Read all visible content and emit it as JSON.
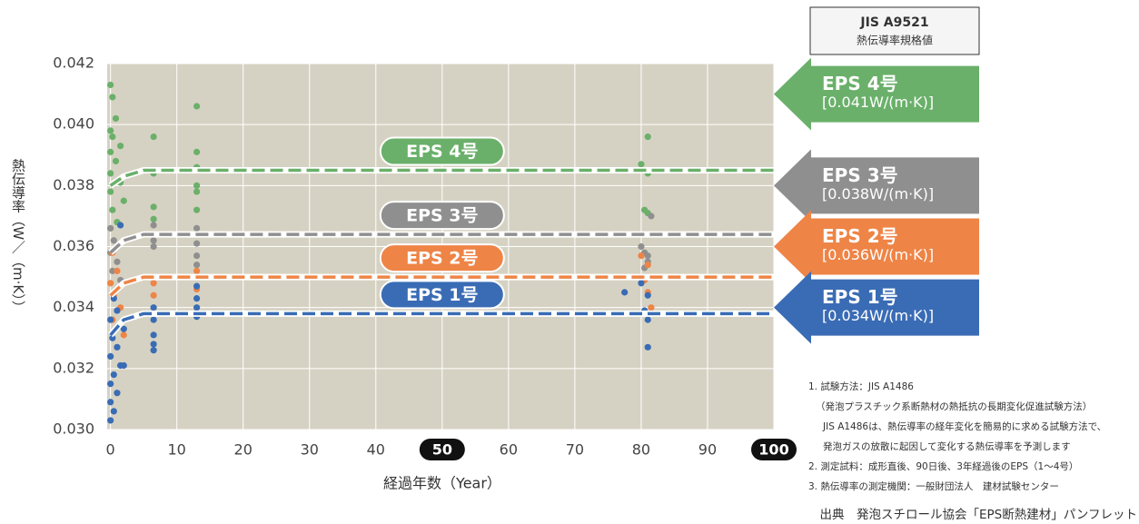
{
  "chart_data": {
    "type": "scatter",
    "y_label": "熱伝導率（W／（m·K））",
    "x_label": "経過年数（Year）",
    "header": {
      "title": "JIS A9521",
      "subtitle": "熱伝導率規格値"
    },
    "xlim": [
      -0.5,
      100
    ],
    "xticks": [
      0,
      10,
      20,
      30,
      40,
      50,
      60,
      70,
      80,
      90,
      100
    ],
    "xtick_highlight": [
      50,
      100
    ],
    "ylim": [
      0.03,
      0.042
    ],
    "yticks": [
      {
        "value": 0.03,
        "label": "0.030"
      },
      0.032,
      0.034,
      0.036,
      0.038,
      {
        "value": 0.04,
        "label": "0.040"
      },
      0.042
    ],
    "grid": true,
    "series": [
      {
        "name": "EPS 4号",
        "color": "#6ab06a",
        "x": [
          0,
          0.3,
          0.8,
          0,
          0.3,
          1.5,
          0,
          0.8,
          0,
          1.5,
          0,
          2,
          0.3,
          1,
          6.5,
          6.5,
          6.5,
          6.5,
          13,
          13,
          13,
          13,
          13,
          13,
          80,
          81,
          81,
          80.5,
          81
        ],
        "values": [
          0.0413,
          0.0409,
          0.0402,
          0.0398,
          0.0396,
          0.0393,
          0.0391,
          0.0388,
          0.0384,
          0.0381,
          0.0378,
          0.0375,
          0.0372,
          0.0368,
          0.0396,
          0.0384,
          0.0373,
          0.0369,
          0.0406,
          0.0391,
          0.0386,
          0.038,
          0.0378,
          0.0372,
          0.0387,
          0.0396,
          0.0384,
          0.0372,
          0.0371
        ],
        "line": {
          "x": [
            0,
            2,
            5,
            100
          ],
          "values": [
            0.038,
            0.0383,
            0.0385,
            0.0385
          ]
        },
        "standard": 0.041,
        "standard_label": "[0.041W/(m·K)]"
      },
      {
        "name": "EPS 3号",
        "color": "#8f8f8f",
        "x": [
          0,
          0.5,
          0,
          1,
          0.3,
          1.5,
          6.5,
          6.5,
          6.5,
          13,
          13,
          13,
          13,
          80,
          80.5,
          81,
          81,
          80.5,
          81,
          81.5
        ],
        "values": [
          0.0366,
          0.0362,
          0.0358,
          0.0355,
          0.0352,
          0.0349,
          0.0367,
          0.0362,
          0.036,
          0.0366,
          0.0361,
          0.0357,
          0.0354,
          0.036,
          0.0358,
          0.0357,
          0.0355,
          0.0353,
          0.035,
          0.037
        ],
        "line": {
          "x": [
            0,
            2,
            5,
            100
          ],
          "values": [
            0.0358,
            0.0362,
            0.0364,
            0.0364
          ]
        },
        "standard": 0.038,
        "standard_label": "[0.038W/(m·K)]"
      },
      {
        "name": "EPS 2号",
        "color": "#ee8446",
        "x": [
          0.3,
          1,
          0,
          0.5,
          1.5,
          0.3,
          2,
          6.5,
          6.5,
          13,
          13,
          80,
          81,
          80.5,
          81,
          81.5
        ],
        "values": [
          0.0358,
          0.0352,
          0.0348,
          0.0344,
          0.034,
          0.0336,
          0.0331,
          0.0348,
          0.0344,
          0.0352,
          0.0346,
          0.0357,
          0.0354,
          0.0349,
          0.0345,
          0.034
        ],
        "line": {
          "x": [
            0,
            2,
            5,
            100
          ],
          "values": [
            0.0344,
            0.0348,
            0.035,
            0.035
          ]
        },
        "standard": 0.036,
        "standard_label": "[0.036W/(m·K)]"
      },
      {
        "name": "EPS 1号",
        "color": "#3a6cb5",
        "x": [
          1.5,
          0.5,
          1,
          0,
          2,
          0.3,
          1,
          0,
          1.5,
          0.5,
          0,
          1,
          0,
          0.5,
          0,
          2,
          6.5,
          6.5,
          6.5,
          6.5,
          6.5,
          13,
          13,
          13,
          13,
          80,
          81,
          80.5,
          81,
          81,
          77.5
        ],
        "values": [
          0.0367,
          0.0343,
          0.0339,
          0.0336,
          0.0333,
          0.033,
          0.0327,
          0.0324,
          0.0321,
          0.0318,
          0.0315,
          0.0312,
          0.0309,
          0.0306,
          0.0303,
          0.0321,
          0.034,
          0.0336,
          0.0331,
          0.0328,
          0.0326,
          0.0347,
          0.0343,
          0.034,
          0.0337,
          0.0348,
          0.0344,
          0.0339,
          0.0336,
          0.0327,
          0.0345
        ],
        "line": {
          "x": [
            0,
            2,
            5,
            100
          ],
          "values": [
            0.0331,
            0.0336,
            0.0338,
            0.0338
          ]
        },
        "standard": 0.034,
        "standard_label": "[0.034W/(m·K)]"
      }
    ],
    "notes": [
      "1. 試験方法：JIS A1486",
      "（発泡プラスチック系断熱材の熱抵抗の長期変化促進試験方法）",
      "JIS A1486は、熱伝導率の経年変化を簡易的に求める試験方法で、",
      "発泡ガスの放散に起因して変化する熱伝導率を予測します",
      "2. 測定試料：成形直後、90日後、3年経過後のEPS（1～4号）",
      "3. 熱伝導率の測定機関：一般財団法人　建材試験センター"
    ],
    "source": "出典　発泡スチロール協会「EPS断熱建材」パンフレット"
  }
}
